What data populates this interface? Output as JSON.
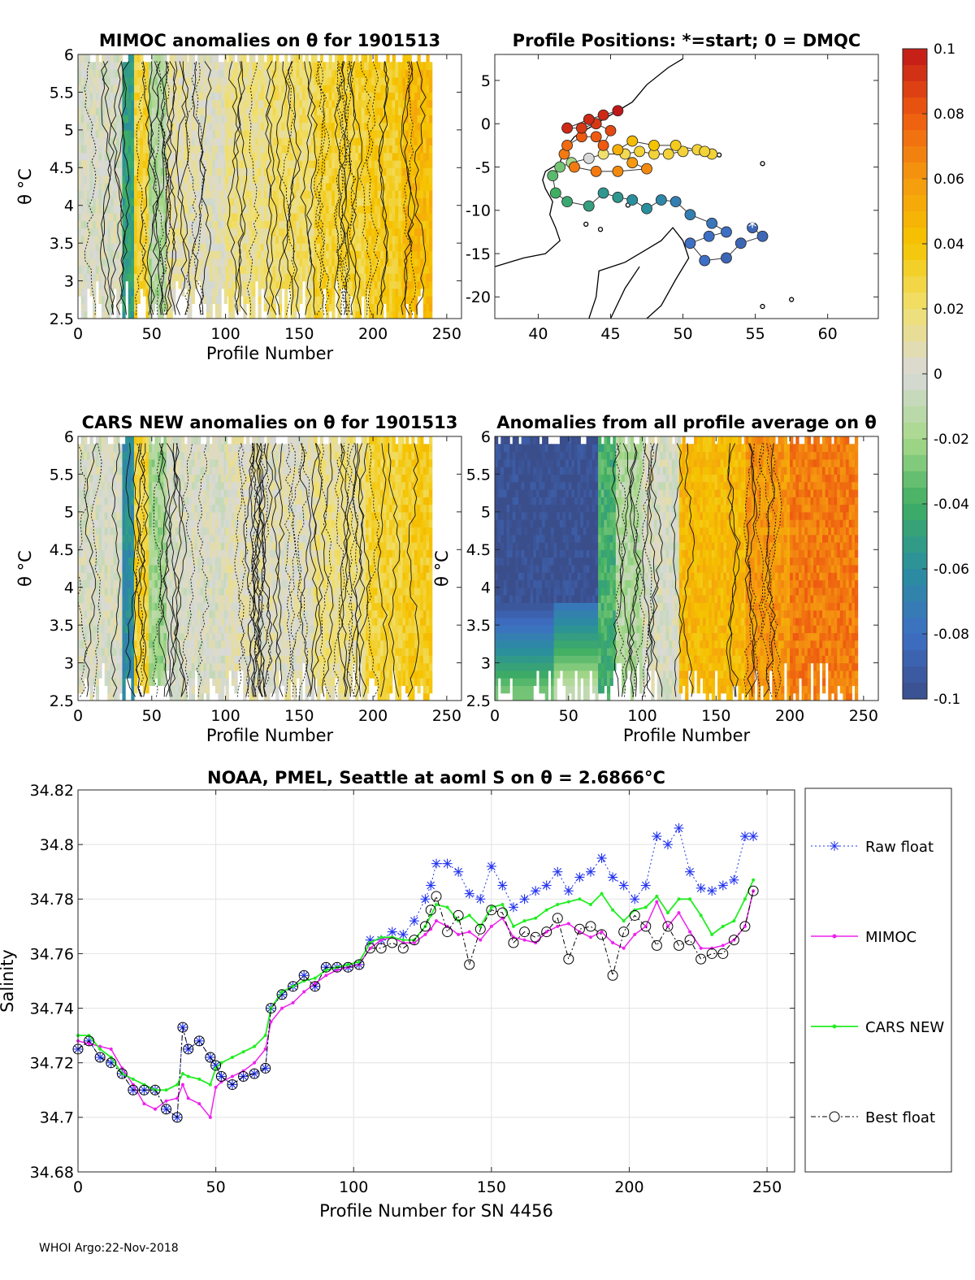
{
  "footer": "WHOI Argo:22-Nov-2018",
  "colors": {
    "raw": "#2233ee",
    "mimoc": "#ee22ee",
    "cars": "#22ee22",
    "best": "#000000",
    "grid": "#e2e2e2",
    "land": "#000000"
  },
  "colorbar": {
    "min": -0.1,
    "max": 0.1,
    "ticks": [
      "0.1",
      "0.08",
      "0.06",
      "0.04",
      "0.02",
      "0",
      "-0.02",
      "-0.04",
      "-0.06",
      "-0.08",
      "-0.1"
    ],
    "stops": [
      {
        "v": -0.1,
        "color": "#3b4e8c"
      },
      {
        "v": -0.08,
        "color": "#3d6fc4"
      },
      {
        "v": -0.06,
        "color": "#2a8f9d"
      },
      {
        "v": -0.04,
        "color": "#3fae62"
      },
      {
        "v": -0.02,
        "color": "#a8d98a"
      },
      {
        "v": 0.0,
        "color": "#d9d9d9"
      },
      {
        "v": 0.02,
        "color": "#f0e070"
      },
      {
        "v": 0.04,
        "color": "#f5c400"
      },
      {
        "v": 0.06,
        "color": "#f59a10"
      },
      {
        "v": 0.08,
        "color": "#ee5a10"
      },
      {
        "v": 0.1,
        "color": "#c01818"
      }
    ]
  },
  "chart_data": [
    {
      "id": "mimoc",
      "type": "heatmap",
      "title": "MIMOC anomalies on θ  for 1901513",
      "xlabel": "Profile Number",
      "ylabel": "θ °C",
      "xlim": [
        0,
        260
      ],
      "ylim": [
        2.5,
        6
      ],
      "xticks": [
        "0",
        "50",
        "100",
        "150",
        "200",
        "250"
      ],
      "yticks": [
        "2.5",
        "3",
        "3.5",
        "4",
        "4.5",
        "5",
        "5.5",
        "6"
      ],
      "column_anomaly": [
        {
          "from": 0,
          "to": 30,
          "value": 0.0
        },
        {
          "from": 30,
          "to": 38,
          "value": -0.05
        },
        {
          "from": 38,
          "to": 48,
          "value": 0.03
        },
        {
          "from": 48,
          "to": 60,
          "value": -0.015
        },
        {
          "from": 60,
          "to": 75,
          "value": 0.01
        },
        {
          "from": 75,
          "to": 100,
          "value": 0.005
        },
        {
          "from": 100,
          "to": 130,
          "value": 0.015
        },
        {
          "from": 130,
          "to": 160,
          "value": 0.02
        },
        {
          "from": 160,
          "to": 195,
          "value": 0.03
        },
        {
          "from": 195,
          "to": 220,
          "value": 0.035
        },
        {
          "from": 220,
          "to": 240,
          "value": 0.045
        }
      ]
    },
    {
      "id": "positions",
      "type": "scatter",
      "title": "Profile Positions: *=start; 0 = DMQC",
      "xlabel": "",
      "ylabel": "",
      "xlim": [
        37,
        63.5
      ],
      "ylim": [
        -22.5,
        8
      ],
      "xticks": [
        "40",
        "45",
        "50",
        "55",
        "60"
      ],
      "yticks": [
        "5",
        "0",
        "-5",
        "-10",
        "-15",
        "-20"
      ],
      "start_marker": "*",
      "track": [
        {
          "lon": 54.8,
          "lat": -12.0,
          "a": -0.085
        },
        {
          "lon": 55.5,
          "lat": -13.0,
          "a": -0.085
        },
        {
          "lon": 54.0,
          "lat": -13.8,
          "a": -0.085
        },
        {
          "lon": 53.0,
          "lat": -15.5,
          "a": -0.085
        },
        {
          "lon": 51.5,
          "lat": -15.8,
          "a": -0.08
        },
        {
          "lon": 50.5,
          "lat": -13.8,
          "a": -0.08
        },
        {
          "lon": 51.8,
          "lat": -13.0,
          "a": -0.08
        },
        {
          "lon": 53.0,
          "lat": -12.5,
          "a": -0.08
        },
        {
          "lon": 52.0,
          "lat": -11.5,
          "a": -0.075
        },
        {
          "lon": 50.5,
          "lat": -10.5,
          "a": -0.07
        },
        {
          "lon": 49.5,
          "lat": -9.0,
          "a": -0.07
        },
        {
          "lon": 48.5,
          "lat": -8.8,
          "a": -0.065
        },
        {
          "lon": 47.5,
          "lat": -9.8,
          "a": -0.06
        },
        {
          "lon": 46.5,
          "lat": -8.8,
          "a": -0.06
        },
        {
          "lon": 45.5,
          "lat": -8.5,
          "a": -0.055
        },
        {
          "lon": 44.5,
          "lat": -8.0,
          "a": -0.055
        },
        {
          "lon": 43.5,
          "lat": -9.5,
          "a": -0.05
        },
        {
          "lon": 42.0,
          "lat": -9.0,
          "a": -0.045
        },
        {
          "lon": 41.2,
          "lat": -8.0,
          "a": -0.04
        },
        {
          "lon": 41.0,
          "lat": -6.0,
          "a": -0.035
        },
        {
          "lon": 41.5,
          "lat": -5.0,
          "a": -0.03
        },
        {
          "lon": 42.3,
          "lat": -4.5,
          "a": -0.02
        },
        {
          "lon": 43.5,
          "lat": -4.0,
          "a": 0.0
        },
        {
          "lon": 44.5,
          "lat": -3.5,
          "a": 0.02
        },
        {
          "lon": 46.0,
          "lat": -3.5,
          "a": 0.025
        },
        {
          "lon": 47.0,
          "lat": -3.2,
          "a": 0.03
        },
        {
          "lon": 48.0,
          "lat": -3.5,
          "a": 0.03
        },
        {
          "lon": 49.0,
          "lat": -3.5,
          "a": 0.03
        },
        {
          "lon": 50.0,
          "lat": -3.2,
          "a": 0.03
        },
        {
          "lon": 51.0,
          "lat": -3.0,
          "a": 0.03
        },
        {
          "lon": 52.0,
          "lat": -3.5,
          "a": 0.03
        },
        {
          "lon": 51.5,
          "lat": -3.2,
          "a": 0.03
        },
        {
          "lon": 49.5,
          "lat": -2.5,
          "a": 0.035
        },
        {
          "lon": 48.0,
          "lat": -2.5,
          "a": 0.04
        },
        {
          "lon": 46.5,
          "lat": -2.0,
          "a": 0.045
        },
        {
          "lon": 45.5,
          "lat": -3.0,
          "a": 0.05
        },
        {
          "lon": 46.5,
          "lat": -4.5,
          "a": 0.06
        },
        {
          "lon": 47.5,
          "lat": -5.2,
          "a": 0.065
        },
        {
          "lon": 45.5,
          "lat": -5.5,
          "a": 0.065
        },
        {
          "lon": 44.0,
          "lat": -5.5,
          "a": 0.07
        },
        {
          "lon": 42.5,
          "lat": -5.0,
          "a": 0.07
        },
        {
          "lon": 41.8,
          "lat": -3.5,
          "a": 0.07
        },
        {
          "lon": 42.0,
          "lat": -2.5,
          "a": 0.075
        },
        {
          "lon": 43.0,
          "lat": -1.5,
          "a": 0.08
        },
        {
          "lon": 44.0,
          "lat": -1.5,
          "a": 0.08
        },
        {
          "lon": 44.5,
          "lat": -2.5,
          "a": 0.08
        },
        {
          "lon": 45.0,
          "lat": -0.8,
          "a": 0.085
        },
        {
          "lon": 44.0,
          "lat": 0.0,
          "a": 0.09
        },
        {
          "lon": 43.0,
          "lat": -0.5,
          "a": 0.09
        },
        {
          "lon": 42.0,
          "lat": -0.5,
          "a": 0.095
        },
        {
          "lon": 43.5,
          "lat": 0.5,
          "a": 0.095
        },
        {
          "lon": 44.5,
          "lat": 1.0,
          "a": 0.095
        },
        {
          "lon": 45.5,
          "lat": 1.5,
          "a": 0.1
        }
      ]
    },
    {
      "id": "cars",
      "type": "heatmap",
      "title": "CARS NEW anomalies on θ for 1901513",
      "xlabel": "Profile Number",
      "ylabel": "θ °C",
      "xlim": [
        0,
        260
      ],
      "ylim": [
        2.5,
        6
      ],
      "xticks": [
        "0",
        "50",
        "100",
        "150",
        "200",
        "250"
      ],
      "yticks": [
        "2.5",
        "3",
        "3.5",
        "4",
        "4.5",
        "5",
        "5.5",
        "6"
      ],
      "column_anomaly": [
        {
          "from": 0,
          "to": 30,
          "value": 0.0
        },
        {
          "from": 30,
          "to": 38,
          "value": -0.06
        },
        {
          "from": 38,
          "to": 48,
          "value": 0.03
        },
        {
          "from": 48,
          "to": 60,
          "value": -0.02
        },
        {
          "from": 60,
          "to": 75,
          "value": 0.0
        },
        {
          "from": 75,
          "to": 100,
          "value": 0.0
        },
        {
          "from": 100,
          "to": 130,
          "value": 0.005
        },
        {
          "from": 130,
          "to": 160,
          "value": 0.005
        },
        {
          "from": 160,
          "to": 195,
          "value": 0.015
        },
        {
          "from": 195,
          "to": 220,
          "value": 0.03
        },
        {
          "from": 220,
          "to": 240,
          "value": 0.035
        }
      ]
    },
    {
      "id": "allavg",
      "type": "heatmap",
      "title": "Anomalies from all profile average on θ",
      "xlabel": "Profile Number",
      "ylabel": "θ °C",
      "xlim": [
        0,
        260
      ],
      "ylim": [
        2.5,
        6
      ],
      "xticks": [
        "0",
        "50",
        "100",
        "150",
        "200",
        "250"
      ],
      "yticks": [
        "2.5",
        "3",
        "3.5",
        "4",
        "4.5",
        "5",
        "5.5",
        "6"
      ],
      "column_anomaly": [
        {
          "from": 0,
          "to": 40,
          "value": -0.1
        },
        {
          "from": 40,
          "to": 70,
          "value": -0.1
        },
        {
          "from": 70,
          "to": 82,
          "value": -0.04
        },
        {
          "from": 82,
          "to": 100,
          "value": -0.015
        },
        {
          "from": 100,
          "to": 125,
          "value": 0.0
        },
        {
          "from": 125,
          "to": 170,
          "value": 0.045
        },
        {
          "from": 170,
          "to": 200,
          "value": 0.06
        },
        {
          "from": 200,
          "to": 245,
          "value": 0.07
        }
      ]
    },
    {
      "id": "salinity",
      "type": "line",
      "title": "NOAA, PMEL, Seattle at aoml S on θ = 2.6866°C",
      "xlabel": "Profile Number for SN 4456",
      "ylabel": "Salinity",
      "xlim": [
        0,
        260
      ],
      "ylim": [
        34.68,
        34.82
      ],
      "xticks": [
        "0",
        "50",
        "100",
        "150",
        "200",
        "250"
      ],
      "yticks": [
        "34.68",
        "34.7",
        "34.72",
        "34.74",
        "34.76",
        "34.78",
        "34.8",
        "34.82"
      ],
      "legend_position": "outside-right",
      "x": [
        0,
        4,
        8,
        12,
        16,
        20,
        24,
        28,
        32,
        36,
        38,
        40,
        44,
        48,
        50,
        52,
        56,
        60,
        64,
        68,
        70,
        74,
        78,
        82,
        86,
        90,
        94,
        98,
        102,
        106,
        110,
        114,
        118,
        122,
        126,
        128,
        130,
        134,
        138,
        142,
        146,
        150,
        154,
        158,
        162,
        166,
        170,
        174,
        178,
        182,
        186,
        190,
        194,
        198,
        202,
        206,
        210,
        214,
        218,
        222,
        226,
        230,
        234,
        238,
        242,
        245
      ],
      "series": [
        {
          "name": "Raw float",
          "values": [
            34.725,
            34.728,
            34.722,
            34.72,
            34.716,
            34.71,
            34.71,
            34.71,
            34.703,
            34.7,
            34.733,
            34.725,
            34.728,
            34.722,
            34.719,
            34.715,
            34.712,
            34.715,
            34.716,
            34.718,
            34.74,
            34.745,
            34.748,
            34.752,
            34.748,
            34.755,
            34.755,
            34.755,
            34.756,
            34.765,
            34.765,
            34.768,
            34.767,
            34.772,
            34.78,
            34.785,
            34.793,
            34.793,
            34.79,
            34.782,
            34.78,
            34.792,
            34.785,
            34.777,
            34.78,
            34.783,
            34.785,
            34.79,
            34.783,
            34.788,
            34.79,
            34.795,
            34.788,
            34.785,
            34.78,
            34.785,
            34.803,
            34.8,
            34.806,
            34.79,
            34.784,
            34.783,
            34.785,
            34.787,
            34.803,
            34.803
          ]
        },
        {
          "name": "MIMOC",
          "values": [
            34.728,
            34.727,
            34.726,
            34.725,
            34.718,
            34.712,
            34.705,
            34.703,
            34.706,
            34.707,
            34.712,
            34.707,
            34.705,
            34.7,
            34.711,
            34.713,
            34.715,
            34.717,
            34.72,
            34.725,
            34.735,
            34.74,
            34.742,
            34.746,
            34.749,
            34.752,
            34.754,
            34.755,
            34.756,
            34.762,
            34.765,
            34.766,
            34.764,
            34.764,
            34.767,
            34.769,
            34.772,
            34.77,
            34.767,
            34.768,
            34.765,
            34.77,
            34.773,
            34.766,
            34.765,
            34.764,
            34.768,
            34.77,
            34.771,
            34.768,
            34.766,
            34.768,
            34.764,
            34.762,
            34.767,
            34.77,
            34.779,
            34.77,
            34.775,
            34.768,
            34.762,
            34.762,
            34.763,
            34.765,
            34.77,
            34.783
          ]
        },
        {
          "name": "CARS NEW",
          "values": [
            34.73,
            34.73,
            34.725,
            34.722,
            34.716,
            34.714,
            34.712,
            34.71,
            34.71,
            34.712,
            34.716,
            34.715,
            34.714,
            34.712,
            34.718,
            34.72,
            34.722,
            34.724,
            34.726,
            34.73,
            34.74,
            34.746,
            34.748,
            34.75,
            34.751,
            34.754,
            34.755,
            34.756,
            34.757,
            34.764,
            34.766,
            34.766,
            34.765,
            34.765,
            34.77,
            34.774,
            34.778,
            34.777,
            34.772,
            34.774,
            34.77,
            34.777,
            34.778,
            34.77,
            34.772,
            34.773,
            34.776,
            34.778,
            34.779,
            34.78,
            34.778,
            34.782,
            34.776,
            34.772,
            34.776,
            34.777,
            34.781,
            34.775,
            34.78,
            34.78,
            34.774,
            34.767,
            34.77,
            34.772,
            34.78,
            34.787
          ]
        },
        {
          "name": "Best float",
          "values": [
            34.725,
            34.728,
            34.722,
            34.72,
            34.716,
            34.71,
            34.71,
            34.71,
            34.703,
            34.7,
            34.733,
            34.725,
            34.728,
            34.722,
            34.719,
            34.715,
            34.712,
            34.715,
            34.716,
            34.718,
            34.74,
            34.745,
            34.748,
            34.752,
            34.748,
            34.755,
            34.755,
            34.755,
            34.756,
            34.762,
            34.762,
            34.764,
            34.762,
            34.765,
            34.77,
            34.776,
            34.781,
            34.768,
            34.774,
            34.756,
            34.769,
            34.776,
            34.775,
            34.764,
            34.768,
            34.766,
            34.768,
            34.773,
            34.758,
            34.769,
            34.77,
            34.767,
            34.752,
            34.768,
            34.774,
            34.77,
            34.763,
            34.77,
            34.763,
            34.765,
            34.758,
            34.76,
            34.76,
            34.765,
            34.77,
            34.783
          ]
        }
      ]
    }
  ]
}
